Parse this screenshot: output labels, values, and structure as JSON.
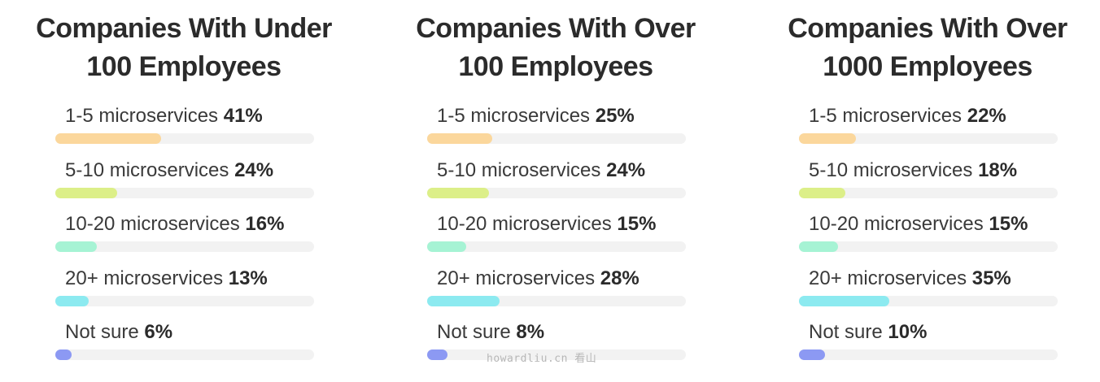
{
  "chart_data": [
    {
      "type": "bar",
      "title_lines": [
        "Companies With Under",
        "100 Employees"
      ],
      "unit": "%",
      "ylim": [
        0,
        100
      ],
      "categories": [
        "1-5 microservices",
        "5-10 microservices",
        "10-20 microservices",
        "20+ microservices",
        "Not sure"
      ],
      "values": [
        41,
        24,
        16,
        13,
        6
      ],
      "value_labels": [
        "41%",
        "24%",
        "16%",
        "13%",
        "6%"
      ],
      "colors": [
        "#fbd79c",
        "#dcef88",
        "#a6f3d4",
        "#8ceaf0",
        "#8c99f3"
      ]
    },
    {
      "type": "bar",
      "title_lines": [
        "Companies With Over",
        "100 Employees"
      ],
      "unit": "%",
      "ylim": [
        0,
        100
      ],
      "categories": [
        "1-5 microservices",
        "5-10 microservices",
        "10-20 microservices",
        "20+ microservices",
        "Not sure"
      ],
      "values": [
        25,
        24,
        15,
        28,
        8
      ],
      "value_labels": [
        "25%",
        "24%",
        "15%",
        "28%",
        "8%"
      ],
      "colors": [
        "#fbd79c",
        "#dcef88",
        "#a6f3d4",
        "#8ceaf0",
        "#8c99f3"
      ]
    },
    {
      "type": "bar",
      "title_lines": [
        "Companies With Over",
        "1000 Employees"
      ],
      "unit": "%",
      "ylim": [
        0,
        100
      ],
      "categories": [
        "1-5 microservices",
        "5-10 microservices",
        "10-20 microservices",
        "20+ microservices",
        "Not sure"
      ],
      "values": [
        22,
        18,
        15,
        35,
        10
      ],
      "value_labels": [
        "22%",
        "18%",
        "15%",
        "35%",
        "10%"
      ],
      "colors": [
        "#fbd79c",
        "#dcef88",
        "#a6f3d4",
        "#8ceaf0",
        "#8c99f3"
      ]
    }
  ],
  "watermark": "howardliu.cn 看山"
}
